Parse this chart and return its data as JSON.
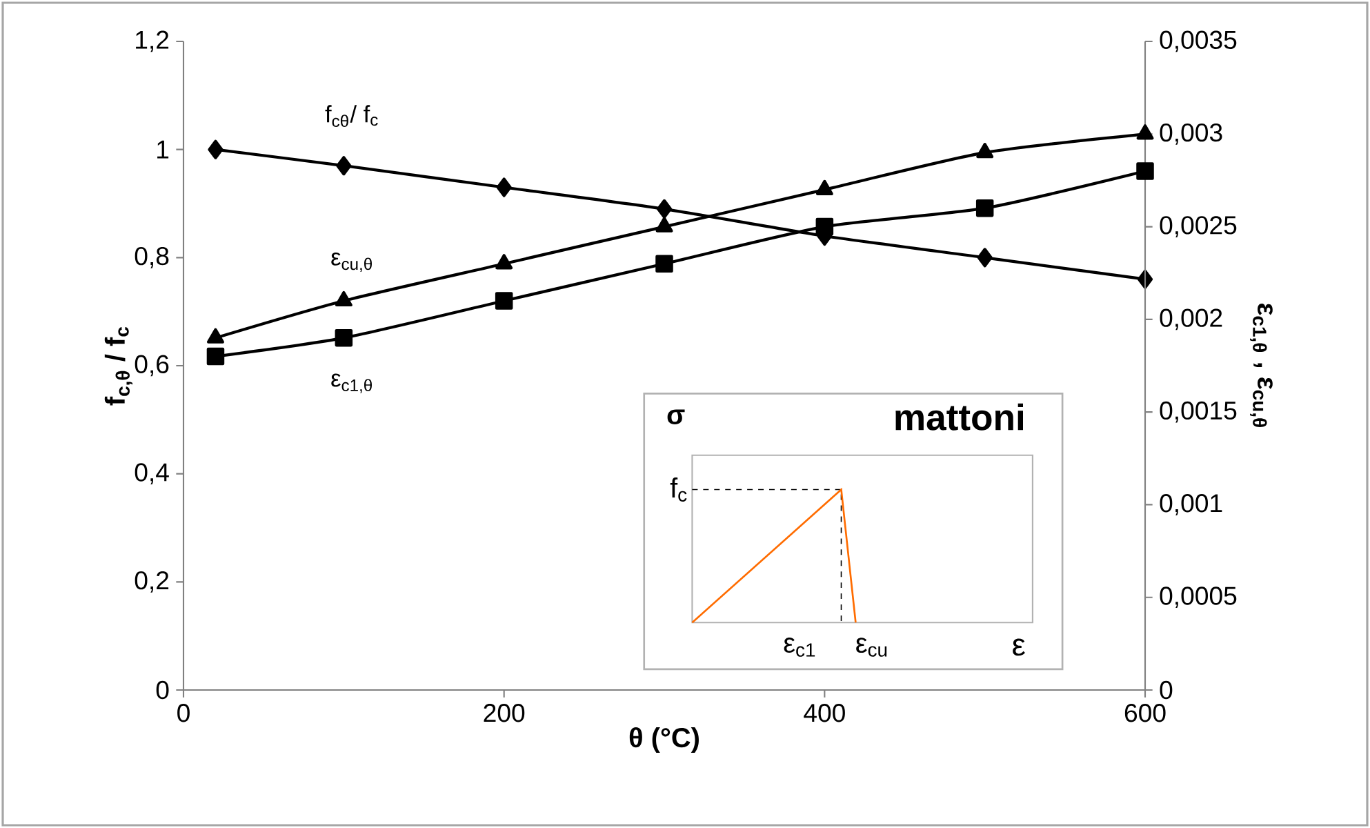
{
  "chart_data": {
    "type": "line",
    "xlabel": "θ (°C)",
    "ylabel": "f$_{c,θ}$ / f$_{c}$",
    "y2label": "ε$_{c1,θ}$ ,  ε$_{cu,θ}$",
    "x": [
      20,
      100,
      200,
      300,
      400,
      500,
      600
    ],
    "xlim": [
      0,
      600
    ],
    "xticks": [
      0,
      200,
      400,
      600
    ],
    "ylim": [
      0,
      1.2
    ],
    "yticks": [
      0,
      {
        "value": 0.2,
        "label": "0,2"
      },
      {
        "value": 0.4,
        "label": "0,4"
      },
      {
        "value": 0.6,
        "label": "0,6"
      },
      {
        "value": 0.8,
        "label": "0,8"
      },
      1,
      {
        "value": 1.2,
        "label": "1,2"
      }
    ],
    "y2lim": [
      0,
      0.0035
    ],
    "y2ticks": [
      0,
      {
        "value": 0.0005,
        "label": "0,0005"
      },
      {
        "value": 0.001,
        "label": "0,001"
      },
      {
        "value": 0.0015,
        "label": "0,0015"
      },
      {
        "value": 0.002,
        "label": "0,002"
      },
      {
        "value": 0.0025,
        "label": "0,0025"
      },
      {
        "value": 0.003,
        "label": "0,003"
      },
      {
        "value": 0.0035,
        "label": "0,0035"
      }
    ],
    "series": [
      {
        "name": "f$_{cθ}$/ f$_{c}$",
        "color": "#000000",
        "marker": "diamond",
        "values": [
          1,
          0.97,
          0.93,
          0.89,
          0.84,
          0.8,
          0.76
        ]
      },
      {
        "name": "ε$_{cu,θ}$",
        "color": "#000000",
        "marker": "triangle",
        "axis": "y2",
        "values": [
          0.0019,
          0.0021,
          0.0023,
          0.0025,
          0.0027,
          0.0029,
          0.003
        ]
      },
      {
        "name": "ε$_{c1,θ}$",
        "color": "#000000",
        "marker": "square",
        "axis": "y2",
        "values": [
          0.0018,
          0.0019,
          0.0021,
          0.0023,
          0.0025,
          0.0026,
          0.0028
        ]
      }
    ],
    "annotations": [
      "σ",
      "mattoni",
      "f$_{c}$",
      "ε$_{c1}$",
      "ε$_{cu}$",
      "ε"
    ]
  }
}
